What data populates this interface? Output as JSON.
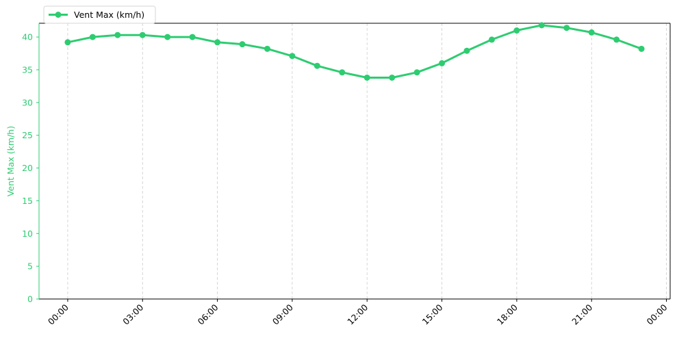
{
  "chart_data": {
    "type": "line",
    "title": "",
    "xlabel": "",
    "ylabel": "Vent Max (km/h)",
    "x_ticks": [
      "00:00",
      "03:00",
      "06:00",
      "09:00",
      "12:00",
      "15:00",
      "18:00",
      "21:00",
      "00:00"
    ],
    "x_tick_hours": [
      0,
      3,
      6,
      9,
      12,
      15,
      18,
      21,
      24
    ],
    "xlim_hours": [
      -1.15,
      24.15
    ],
    "ylim": [
      0,
      42.1
    ],
    "y_ticks": [
      0,
      5,
      10,
      15,
      20,
      25,
      30,
      35,
      40
    ],
    "grid": "vertical dashed",
    "legend_position": "top-left",
    "series": [
      {
        "name": "Vent Max (km/h)",
        "color": "#2ecc71",
        "x_hours": [
          0,
          1,
          2,
          3,
          4,
          5,
          6,
          7,
          8,
          9,
          10,
          11,
          12,
          13,
          14,
          15,
          16,
          17,
          18,
          19,
          20,
          21,
          22,
          23
        ],
        "values": [
          39.2,
          40.0,
          40.3,
          40.3,
          40.0,
          40.0,
          39.2,
          38.9,
          38.2,
          37.1,
          35.6,
          34.6,
          33.8,
          33.8,
          34.6,
          36.0,
          37.9,
          39.6,
          41.0,
          41.8,
          41.4,
          40.7,
          39.6,
          38.2
        ]
      }
    ]
  }
}
